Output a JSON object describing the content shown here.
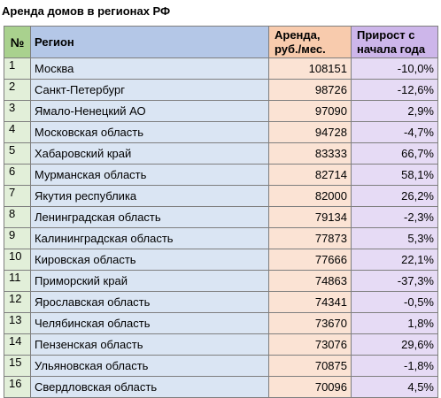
{
  "title": "Аренда домов в регионах РФ",
  "headers": {
    "num": "№",
    "region": "Регион",
    "rent_line1": "Аренда,",
    "rent_line2": "руб./мес.",
    "growth_line1": "Прирост с",
    "growth_line2": "начала года"
  },
  "rows": [
    {
      "num": "1",
      "region": "Москва",
      "rent": "108151",
      "growth": "-10,0%"
    },
    {
      "num": "2",
      "region": "Санкт-Петербург",
      "rent": "98726",
      "growth": "-12,6%"
    },
    {
      "num": "3",
      "region": "Ямало-Ненецкий АО",
      "rent": "97090",
      "growth": "2,9%"
    },
    {
      "num": "4",
      "region": "Московская область",
      "rent": "94728",
      "growth": "-4,7%"
    },
    {
      "num": "5",
      "region": "Хабаровский край",
      "rent": "83333",
      "growth": "66,7%"
    },
    {
      "num": "6",
      "region": "Мурманская область",
      "rent": "82714",
      "growth": "58,1%"
    },
    {
      "num": "7",
      "region": "Якутия республика",
      "rent": "82000",
      "growth": "26,2%"
    },
    {
      "num": "8",
      "region": "Ленинградская область",
      "rent": "79134",
      "growth": "-2,3%"
    },
    {
      "num": "9",
      "region": "Калининградская область",
      "rent": "77873",
      "growth": "5,3%"
    },
    {
      "num": "10",
      "region": "Кировская область",
      "rent": "77666",
      "growth": "22,1%"
    },
    {
      "num": "11",
      "region": "Приморский край",
      "rent": "74863",
      "growth": "-37,3%"
    },
    {
      "num": "12",
      "region": "Ярославская область",
      "rent": "74341",
      "growth": "-0,5%"
    },
    {
      "num": "13",
      "region": "Челябинская область",
      "rent": "73670",
      "growth": "1,8%"
    },
    {
      "num": "14",
      "region": "Пензенская область",
      "rent": "73076",
      "growth": "29,6%"
    },
    {
      "num": "15",
      "region": "Ульяновская область",
      "rent": "70875",
      "growth": "-1,8%"
    },
    {
      "num": "16",
      "region": "Свердловская область",
      "rent": "70096",
      "growth": "4,5%"
    }
  ]
}
